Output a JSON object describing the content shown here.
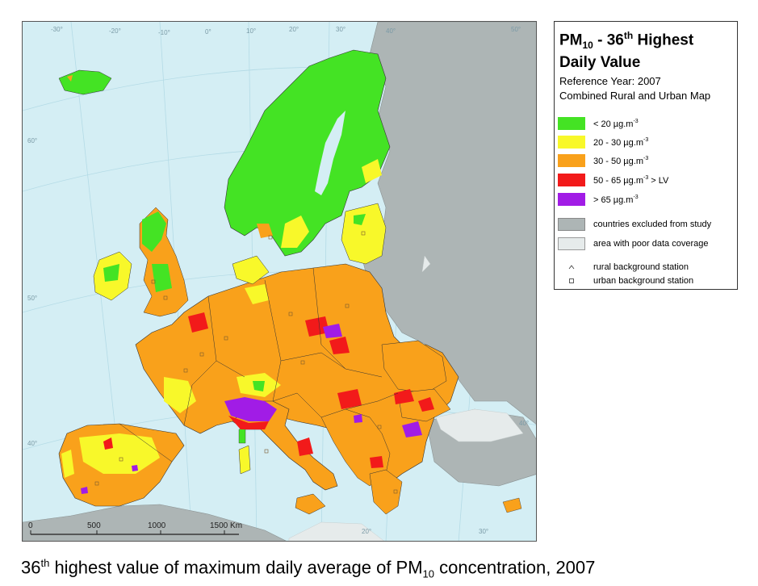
{
  "legend": {
    "title_part1": "PM",
    "title_sub": "10",
    "title_part2": " - 36",
    "title_sup": "th",
    "title_part3": " Highest",
    "title_line2": "Daily Value",
    "reference_year": "Reference Year: 2007",
    "map_type": "Combined Rural and Urban Map",
    "classes": [
      {
        "label": "<  20  µg.m",
        "sup": "-3",
        "suffix": "",
        "color": "#44e324"
      },
      {
        "label": "20 - 30  µg.m",
        "sup": "-3",
        "suffix": "",
        "color": "#f8f82a"
      },
      {
        "label": "30 - 50  µg.m",
        "sup": "-3",
        "suffix": "",
        "color": "#f9a11b"
      },
      {
        "label": "50 - 65  µg.m",
        "sup": "-3",
        "suffix": "  > LV",
        "color": "#f21a1a"
      },
      {
        "label": ">  65  µg.m",
        "sup": "-3",
        "suffix": "",
        "color": "#a11ce6"
      }
    ],
    "excluded_label": "countries excluded from study",
    "excluded_color": "#adb5b5",
    "poor_coverage_label": "area with poor data coverage",
    "poor_coverage_color": "#e6ebeb",
    "rural_station_label": "rural background station",
    "urban_station_label": "urban background station"
  },
  "map": {
    "sea_color": "#d4eef4",
    "scale_labels": [
      "0",
      "500",
      "1000",
      "1500 Km"
    ],
    "longitude_labels": [
      "-30°",
      "-20°",
      "-10°",
      "0°",
      "10°",
      "20°",
      "30°",
      "40°",
      "50°",
      "20°",
      "30°"
    ],
    "latitude_labels": [
      "60°",
      "50°",
      "40°",
      "40°"
    ]
  },
  "caption": {
    "part1": "36",
    "sup": "th",
    "part2": " highest value of maximum daily average of PM",
    "sub": "10",
    "part3": " concentration, 2007"
  }
}
